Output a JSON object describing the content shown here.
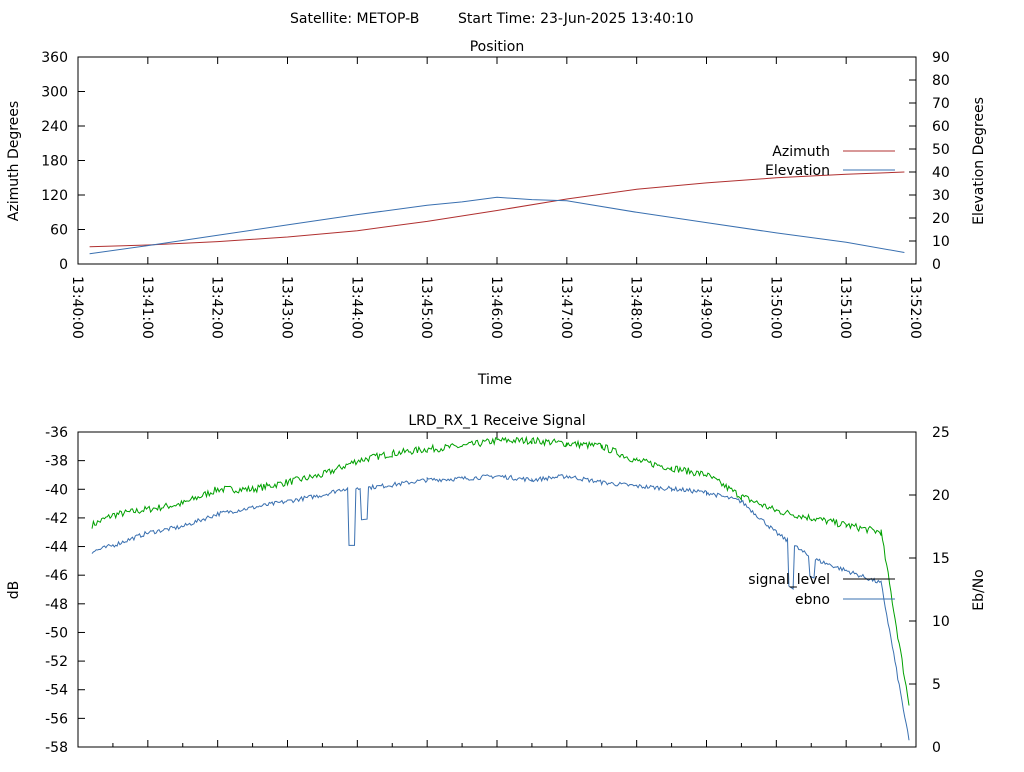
{
  "header": {
    "satellite_label": "Satellite: METOP-B",
    "start_time_label": "Start Time: 23-Jun-2025 13:40:10"
  },
  "chart_data": [
    {
      "type": "line",
      "title": "Position",
      "xlabel": "Time",
      "ylabel": "Azimuth Degrees",
      "y2label": "Elevation Degrees",
      "xlim_minutes": [
        0,
        12
      ],
      "x_ticks": [
        "13:40:00",
        "13:41:00",
        "13:42:00",
        "13:43:00",
        "13:44:00",
        "13:45:00",
        "13:46:00",
        "13:47:00",
        "13:48:00",
        "13:49:00",
        "13:50:00",
        "13:51:00",
        "13:52:00"
      ],
      "ylim": [
        0,
        360
      ],
      "y_ticks": [
        0,
        60,
        120,
        180,
        240,
        300,
        360
      ],
      "y2lim": [
        0,
        90
      ],
      "y2_ticks": [
        0,
        10,
        20,
        30,
        40,
        50,
        60,
        70,
        80,
        90
      ],
      "legend_position": "right",
      "series": [
        {
          "name": "Azimuth",
          "axis": "y",
          "color": "#b03030",
          "x": [
            "13:40:10",
            "13:41:00",
            "13:42:00",
            "13:43:00",
            "13:44:00",
            "13:45:00",
            "13:46:00",
            "13:47:00",
            "13:48:00",
            "13:49:00",
            "13:50:00",
            "13:51:00",
            "13:51:50"
          ],
          "values": [
            30,
            33,
            39,
            47,
            58,
            74,
            93,
            113,
            130,
            141,
            150,
            156,
            160
          ]
        },
        {
          "name": "Elevation",
          "axis": "y2",
          "color": "#3a70b0",
          "x": [
            "13:40:10",
            "13:41:00",
            "13:42:00",
            "13:43:00",
            "13:44:00",
            "13:45:00",
            "13:45:30",
            "13:46:00",
            "13:46:30",
            "13:47:00",
            "13:48:00",
            "13:49:00",
            "13:50:00",
            "13:51:00",
            "13:51:50"
          ],
          "values": [
            4.5,
            8,
            12.5,
            17,
            21.5,
            25.5,
            27,
            29,
            28,
            27.5,
            22.5,
            18,
            13.5,
            9.5,
            5
          ]
        }
      ]
    },
    {
      "type": "line",
      "title": "LRD_RX_1 Receive Signal",
      "xlabel": "",
      "ylabel": "dB",
      "y2label": "Eb/No",
      "xlim_minutes": [
        0,
        12
      ],
      "ylim": [
        -58,
        -36
      ],
      "y_ticks": [
        -58,
        -56,
        -54,
        -52,
        -50,
        -48,
        -46,
        -44,
        -42,
        -40,
        -38,
        -36
      ],
      "y2lim": [
        0,
        25
      ],
      "y2_ticks": [
        0,
        5,
        10,
        15,
        20,
        25
      ],
      "legend_position": "right",
      "series": [
        {
          "name": "signal_level",
          "axis": "y",
          "color": "#000000",
          "legend_only": true,
          "x": [],
          "values": []
        },
        {
          "name": "ebno",
          "axis": "y2",
          "color": "#3a70b0",
          "x_min": [
            0.2,
            0.5,
            1.0,
            1.5,
            2.0,
            2.5,
            3.0,
            3.5,
            3.8,
            4.0,
            4.5,
            5.0,
            5.5,
            6.0,
            6.5,
            7.0,
            7.5,
            8.0,
            8.5,
            9.0,
            9.5,
            10.0,
            10.5,
            11.0,
            11.5,
            11.9
          ],
          "values": [
            15.5,
            16.0,
            17.0,
            17.5,
            18.5,
            19.0,
            19.5,
            20.0,
            20.5,
            20.5,
            20.8,
            21.2,
            21.3,
            21.5,
            21.2,
            21.5,
            21.0,
            20.7,
            20.5,
            20.2,
            19.5,
            17.0,
            15.0,
            14.0,
            13.0,
            0.5
          ]
        },
        {
          "name": "signal_level (green trace)",
          "axis": "y",
          "color": "#00a000",
          "legend_hidden": true,
          "x_min": [
            0.2,
            0.5,
            1.0,
            1.5,
            2.0,
            2.5,
            3.0,
            3.5,
            4.0,
            4.5,
            5.0,
            5.5,
            6.0,
            6.5,
            7.0,
            7.5,
            8.0,
            8.5,
            9.0,
            9.5,
            10.0,
            10.5,
            11.0,
            11.5,
            11.9
          ],
          "values": [
            -42.5,
            -41.8,
            -41.4,
            -41.0,
            -40.0,
            -40.0,
            -39.5,
            -39.0,
            -38.0,
            -37.5,
            -37.2,
            -37.0,
            -36.6,
            -36.6,
            -36.8,
            -37.0,
            -38.0,
            -38.5,
            -39.0,
            -40.5,
            -41.5,
            -42.0,
            -42.5,
            -43.0,
            -55.0
          ]
        }
      ]
    }
  ]
}
